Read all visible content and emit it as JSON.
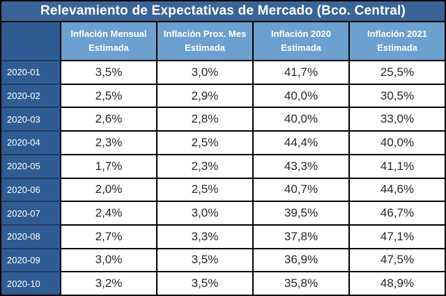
{
  "title_bar": {
    "text": "Relevamiento de Expectativas de Mercado (Bco. Central)"
  },
  "chart_data": {
    "type": "table",
    "title": "Relevamiento de Expectativas de Mercado (Bco. Central)",
    "columns": [
      {
        "line1": "Inflación Mensual",
        "line2": "Estimada"
      },
      {
        "line1": "Inflación Prox. Mes",
        "line2": "Estimada"
      },
      {
        "line1": "Inflación 2020",
        "line2": "Estimada"
      },
      {
        "line1": "Inflación 2021",
        "line2": "Estimada"
      }
    ],
    "rows": [
      {
        "label": "2020-01",
        "values": [
          "3,5%",
          "3,0%",
          "41,7%",
          "25,5%"
        ]
      },
      {
        "label": "2020-02",
        "values": [
          "2,5%",
          "2,9%",
          "40,0%",
          "30,5%"
        ]
      },
      {
        "label": "2020-03",
        "values": [
          "2,6%",
          "2,8%",
          "40,0%",
          "33,0%"
        ]
      },
      {
        "label": "2020-04",
        "values": [
          "2,3%",
          "2,5%",
          "44,4%",
          "40,0%"
        ]
      },
      {
        "label": "2020-05",
        "values": [
          "1,7%",
          "2,3%",
          "43,3%",
          "41,1%"
        ]
      },
      {
        "label": "2020-06",
        "values": [
          "2,0%",
          "2,5%",
          "40,7%",
          "44,6%"
        ]
      },
      {
        "label": "2020-07",
        "values": [
          "2,4%",
          "3,0%",
          "39,5%",
          "46,7%"
        ]
      },
      {
        "label": "2020-08",
        "values": [
          "2,7%",
          "3,3%",
          "37,8%",
          "47,1%"
        ]
      },
      {
        "label": "2020-09",
        "values": [
          "3,0%",
          "3,5%",
          "36,9%",
          "47,5%"
        ]
      },
      {
        "label": "2020-10",
        "values": [
          "3,2%",
          "3,5%",
          "35,8%",
          "48,9%"
        ]
      }
    ]
  },
  "colors": {
    "title_bg": "#3A6496",
    "header_bg": "#6CA0CF",
    "row_label_bg": "#2F5D93",
    "row_label_divider": "#1F3A60",
    "border": "#000000",
    "value_text": "#262626"
  }
}
